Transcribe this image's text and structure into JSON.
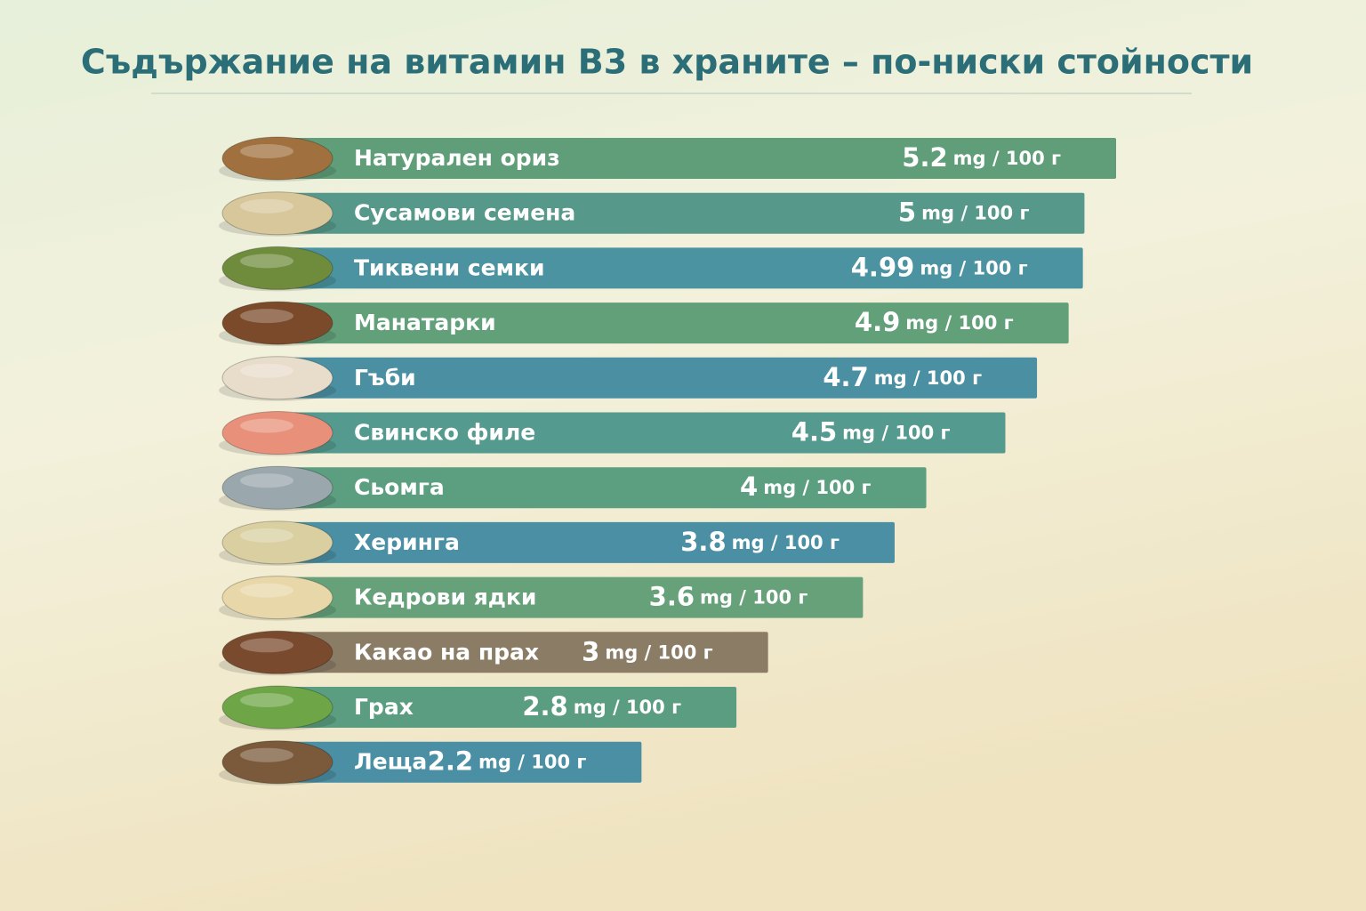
{
  "chart_data": {
    "type": "bar",
    "orientation": "horizontal",
    "title": "Съдържание на витамин B3 в храните – по-ниски стойности",
    "unit": "mg / 100 г",
    "categories": [
      "Натурален ориз",
      "Сусамови семена",
      "Тиквени семки",
      "Манатарки",
      "Гъби",
      "Свинско филе",
      "Сьомга",
      "Херинга",
      "Кедрови ядки",
      "Какао на прах",
      "Грах",
      "Леща"
    ],
    "values": [
      5.2,
      5,
      4.99,
      4.9,
      4.7,
      4.5,
      4,
      3.8,
      3.6,
      3,
      2.8,
      2.2
    ],
    "colors": [
      "#5f9e78",
      "#56998a",
      "#4b93a0",
      "#62a07a",
      "#4a90a2",
      "#559a8e",
      "#5c9e80",
      "#4a8fa3",
      "#66a17a",
      "#8a7c65",
      "#5a9d80",
      "#4a8fa3"
    ]
  }
}
